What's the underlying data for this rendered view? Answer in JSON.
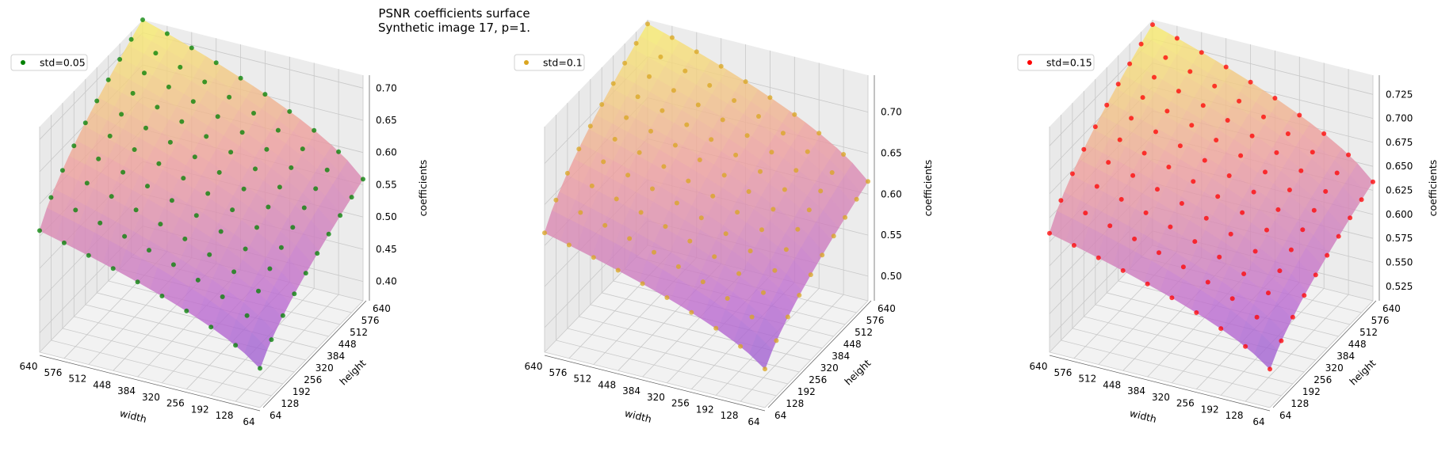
{
  "figure": {
    "title_line1": "PSNR coefficients surface",
    "title_line2": "Synthetic image 17, p=1."
  },
  "chart_data": [
    {
      "type": "surface3d",
      "legend": "std=0.05",
      "point_color": "#008000",
      "xlabel": "width",
      "ylabel": "height",
      "zlabel": "coefficients",
      "x_ticks": [
        64,
        128,
        192,
        256,
        320,
        384,
        448,
        512,
        576,
        640
      ],
      "y_ticks": [
        64,
        128,
        192,
        256,
        320,
        384,
        448,
        512,
        576,
        640
      ],
      "z_ticks": [
        "0.40",
        "0.45",
        "0.50",
        "0.55",
        "0.60",
        "0.65",
        "0.70"
      ],
      "zlim": [
        0.37,
        0.72
      ],
      "surface_model": {
        "z_min": 0.37,
        "z_max": 0.72
      },
      "legend_position": "upper-left",
      "grid": true
    },
    {
      "type": "surface3d",
      "legend": "std=0.1",
      "point_color": "#daa520",
      "xlabel": "width",
      "ylabel": "height",
      "zlabel": "coefficients",
      "x_ticks": [
        64,
        128,
        192,
        256,
        320,
        384,
        448,
        512,
        576,
        640
      ],
      "y_ticks": [
        64,
        128,
        192,
        256,
        320,
        384,
        448,
        512,
        576,
        640
      ],
      "z_ticks": [
        "0.50",
        "0.55",
        "0.60",
        "0.65",
        "0.70"
      ],
      "zlim": [
        0.47,
        0.745
      ],
      "surface_model": {
        "z_min": 0.47,
        "z_max": 0.74
      },
      "legend_position": "upper-left",
      "grid": true
    },
    {
      "type": "surface3d",
      "legend": "std=0.15",
      "point_color": "#ff0000",
      "xlabel": "width",
      "ylabel": "height",
      "zlabel": "coefficients",
      "x_ticks": [
        64,
        128,
        192,
        256,
        320,
        384,
        448,
        512,
        576,
        640
      ],
      "y_ticks": [
        64,
        128,
        192,
        256,
        320,
        384,
        448,
        512,
        576,
        640
      ],
      "z_ticks": [
        "0.525",
        "0.550",
        "0.575",
        "0.600",
        "0.625",
        "0.650",
        "0.675",
        "0.700",
        "0.725"
      ],
      "zlim": [
        0.51,
        0.745
      ],
      "surface_model": {
        "z_min": 0.51,
        "z_max": 0.74
      },
      "legend_position": "upper-left",
      "grid": true
    }
  ]
}
